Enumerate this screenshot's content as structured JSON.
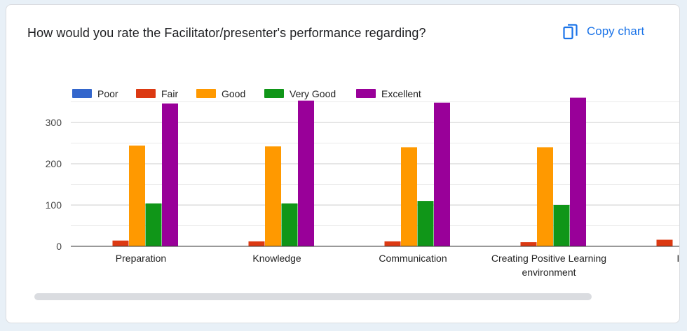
{
  "question": {
    "title": "How would you rate the Facilitator/presenter's performance regarding?"
  },
  "toolbar": {
    "copy_label": "Copy chart",
    "copy_icon": "copy-icon"
  },
  "colors": {
    "Poor": "#3366cc",
    "Fair": "#dc3912",
    "Good": "#ff9900",
    "Very Good": "#109618",
    "Excellent": "#990099"
  },
  "chart_data": {
    "type": "bar",
    "legend_position": "top-left",
    "grid": true,
    "ylim": [
      0,
      350
    ],
    "yticks": [
      0,
      100,
      200,
      300
    ],
    "categories": [
      [
        "Preparation"
      ],
      [
        "Knowledge"
      ],
      [
        "Communication"
      ],
      [
        "Creating Positive Learning",
        "environment"
      ],
      [
        "Inte"
      ]
    ],
    "series": [
      {
        "name": "Poor",
        "values": [
          0,
          0,
          0,
          0,
          0
        ]
      },
      {
        "name": "Fair",
        "values": [
          14,
          12,
          12,
          10,
          16
        ]
      },
      {
        "name": "Good",
        "values": [
          244,
          242,
          240,
          240,
          null
        ]
      },
      {
        "name": "Very Good",
        "values": [
          104,
          104,
          110,
          100,
          null
        ]
      },
      {
        "name": "Excellent",
        "values": [
          346,
          353,
          348,
          360,
          null
        ]
      }
    ]
  }
}
